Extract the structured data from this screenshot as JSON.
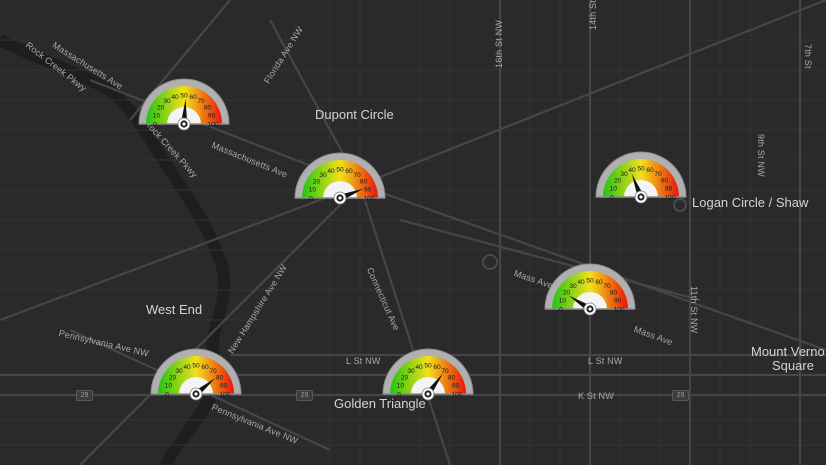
{
  "map": {
    "colors": {
      "background": "#2a2a2a",
      "major_road": "#4a4a4a",
      "minor_road": "#3a3a3a",
      "river": "#1f1f1f"
    },
    "places": {
      "dupont_circle": "Dupont Circle",
      "west_end": "West End",
      "golden_triangle": "Golden Triangle",
      "logan_circle": "Logan Circle / Shaw",
      "mount_vernon_1": "Mount Verno",
      "mount_vernon_2": "Square"
    },
    "streets": {
      "massachusetts_1": "Massachusetts Ave",
      "massachusetts_2": "Massachusetts Ave",
      "rock_creek_1": "Rock Creek Pkwy",
      "rock_creek_2": "Rock Creek Pkwy",
      "florida": "Florida Ave NW",
      "sixteenth": "16th St NW",
      "fourteenth": "14th St",
      "ninth": "9th St NW",
      "seventh": "7th St",
      "eleventh": "11th St NW",
      "new_hampshire": "New Hampshire Ave NW",
      "connecticut": "Connecticut Ave",
      "pennsylvania_1": "Pennsylvania Ave NW",
      "pennsylvania_2": "Pennsylvania Ave NW",
      "l_st_1": "L St NW",
      "l_st_2": "L St NW",
      "k_st": "K St NW",
      "mass_ave_1": "Mass Ave",
      "mass_ave_2": "Mass Ave"
    },
    "route_shields": {
      "left": "29",
      "center": "29",
      "right": "29"
    }
  },
  "gauges": {
    "scale_labels": [
      "0",
      "10",
      "20",
      "30",
      "40",
      "50",
      "60",
      "70",
      "80",
      "90",
      "100"
    ],
    "scale_min": 0,
    "scale_max": 100,
    "colors": {
      "low": "#22c414",
      "mid": "#f2e01a",
      "high": "#e8160b",
      "face": "#f4f4f4",
      "rim": "#b0b0b0",
      "needle": "#111111"
    },
    "readings": {
      "massachusetts": 52,
      "dupont": 88,
      "logan": 38,
      "mass_ave_east": 18,
      "west_end": 78,
      "golden_triangle": 70
    }
  }
}
